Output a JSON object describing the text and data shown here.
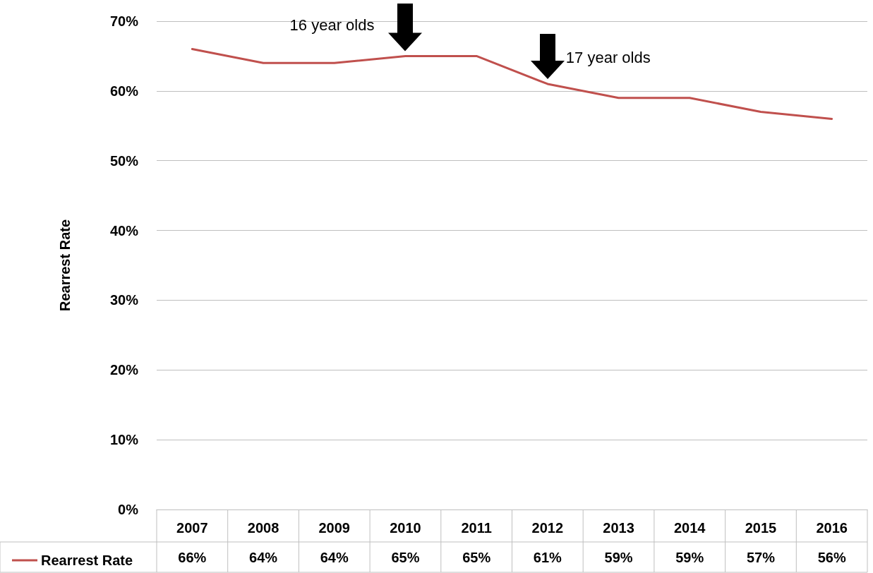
{
  "chart_data": {
    "type": "line",
    "ylabel": "Rearrest Rate",
    "categories": [
      "2007",
      "2008",
      "2009",
      "2010",
      "2011",
      "2012",
      "2013",
      "2014",
      "2015",
      "2016"
    ],
    "series": [
      {
        "name": "Rearrest Rate",
        "color": "#c0504d",
        "values": [
          66,
          64,
          64,
          65,
          65,
          61,
          59,
          59,
          57,
          56
        ],
        "value_labels": [
          "66%",
          "64%",
          "64%",
          "65%",
          "65%",
          "61%",
          "59%",
          "59%",
          "57%",
          "56%"
        ]
      }
    ],
    "ylim": [
      0,
      70
    ],
    "yticks": [
      {
        "value": 0,
        "label": "0%"
      },
      {
        "value": 10,
        "label": "10%"
      },
      {
        "value": 20,
        "label": "20%"
      },
      {
        "value": 30,
        "label": "30%"
      },
      {
        "value": 40,
        "label": "40%"
      },
      {
        "value": 50,
        "label": "50%"
      },
      {
        "value": 60,
        "label": "60%"
      },
      {
        "value": 70,
        "label": "70%"
      }
    ],
    "grid": "y",
    "legend": "bottom left",
    "marker": "none",
    "line_style": "solid",
    "annotations": [
      {
        "text": "16 year olds",
        "x": "2010",
        "y": 65
      },
      {
        "text": "17 year olds",
        "x": "2012",
        "y": 61
      }
    ]
  }
}
